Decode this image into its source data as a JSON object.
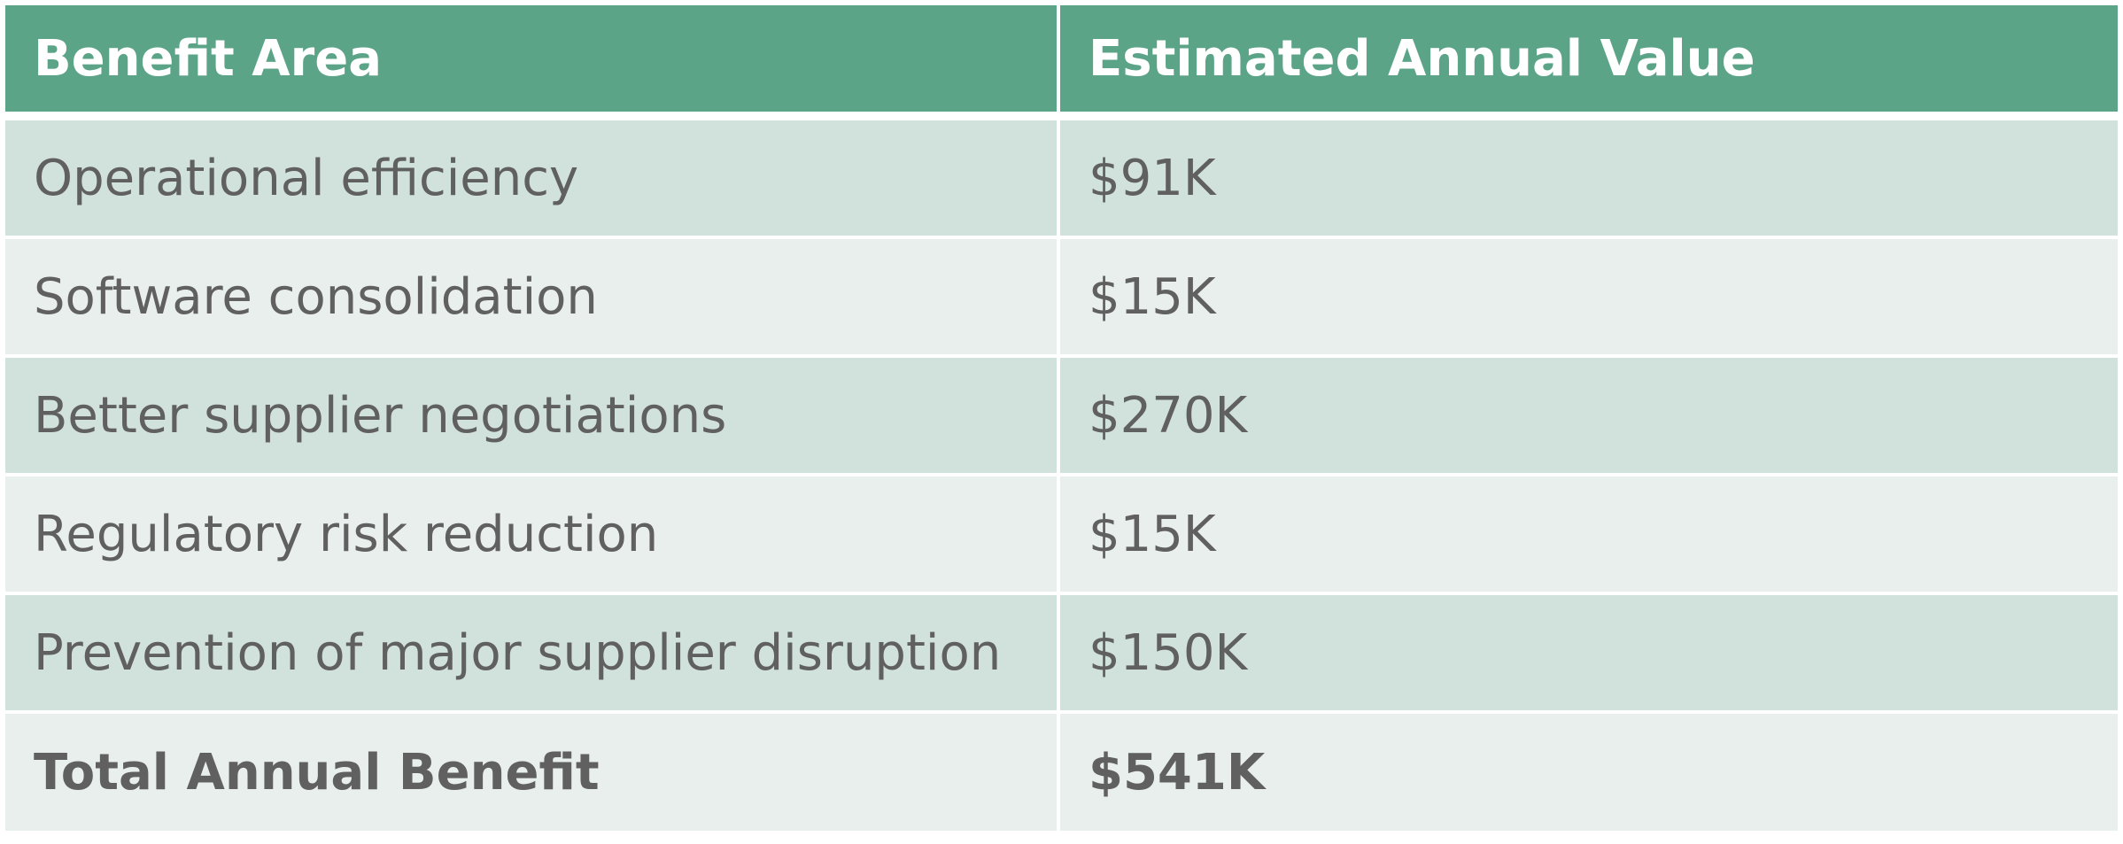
{
  "colors": {
    "header_bg": "#5ca488",
    "row_odd_bg": "#d1e1db",
    "row_even_bg": "#e9efed",
    "body_text": "#606060",
    "header_text": "#ffffff"
  },
  "table": {
    "headers": [
      "Benefit Area",
      "Estimated Annual Value"
    ],
    "rows": [
      [
        "Operational efficiency",
        "$91K"
      ],
      [
        "Software consolidation",
        "$15K"
      ],
      [
        "Better supplier negotiations",
        "$270K"
      ],
      [
        "Regulatory risk reduction",
        "$15K"
      ],
      [
        "Prevention of major supplier disruption",
        "$150K"
      ]
    ],
    "total": [
      "Total Annual Benefit",
      "$541K"
    ]
  }
}
